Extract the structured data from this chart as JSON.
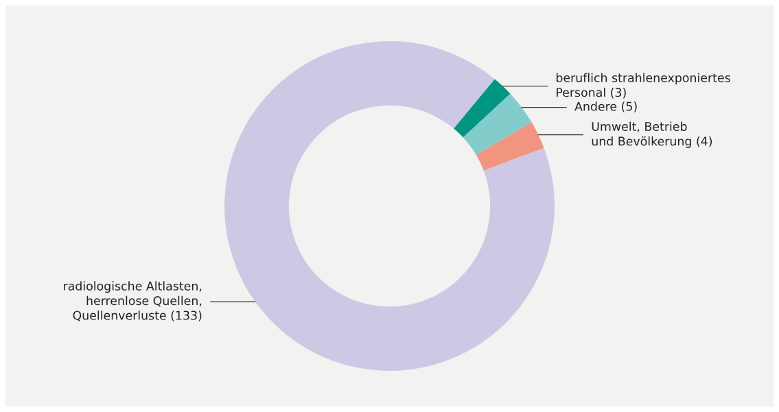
{
  "chart_data": {
    "type": "donut",
    "categories": [
      "beruflich strahlenexponiertes\nPersonal (3)",
      "Andere (5)",
      "Umwelt, Betrieb\nund Bevölkerung (4)",
      "radiologische Altlasten,\nherrenlose Quellen,\nQuellenverluste (133)"
    ],
    "values": [
      3,
      5,
      4,
      133
    ],
    "colors": [
      "#009682",
      "#82cccc",
      "#f29580",
      "#cdc8e4"
    ]
  }
}
